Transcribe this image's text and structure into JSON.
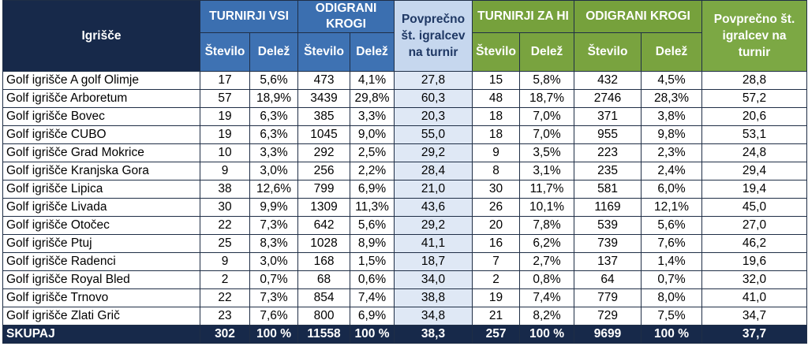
{
  "headers": {
    "igrisce": "Igrišče",
    "turnirji_vsi": "TURNIRJI VSI",
    "odigrani_krogi_1": "ODIGRANI KROGI",
    "povprecno_1": "Povprečno št. igralcev na turnir",
    "turnirji_za_hi": "TURNIRJI ZA HI",
    "odigrani_krogi_2": "ODIGRANI KROGI",
    "povprecno_2": "Povprečno št. igralcev na turnir",
    "stevilo": "Število",
    "delez": "Delež"
  },
  "rows": [
    {
      "name": "Golf igrišče A golf Olimje",
      "t_st": "17",
      "t_de": "5,6%",
      "k_st": "473",
      "k_de": "4,1%",
      "avg1": "27,8",
      "h_st": "15",
      "h_de": "5,8%",
      "hk_st": "432",
      "hk_de": "4,5%",
      "avg2": "28,8"
    },
    {
      "name": "Golf igrišče Arboretum",
      "t_st": "57",
      "t_de": "18,9%",
      "k_st": "3439",
      "k_de": "29,8%",
      "avg1": "60,3",
      "h_st": "48",
      "h_de": "18,7%",
      "hk_st": "2746",
      "hk_de": "28,3%",
      "avg2": "57,2"
    },
    {
      "name": "Golf igrišče Bovec",
      "t_st": "19",
      "t_de": "6,3%",
      "k_st": "385",
      "k_de": "3,3%",
      "avg1": "20,3",
      "h_st": "18",
      "h_de": "7,0%",
      "hk_st": "371",
      "hk_de": "3,8%",
      "avg2": "20,6"
    },
    {
      "name": "Golf igrišče CUBO",
      "t_st": "19",
      "t_de": "6,3%",
      "k_st": "1045",
      "k_de": "9,0%",
      "avg1": "55,0",
      "h_st": "18",
      "h_de": "7,0%",
      "hk_st": "955",
      "hk_de": "9,8%",
      "avg2": "53,1"
    },
    {
      "name": "Golf igrišče Grad Mokrice",
      "t_st": "10",
      "t_de": "3,3%",
      "k_st": "292",
      "k_de": "2,5%",
      "avg1": "29,2",
      "h_st": "9",
      "h_de": "3,5%",
      "hk_st": "223",
      "hk_de": "2,3%",
      "avg2": "24,8"
    },
    {
      "name": "Golf igrišče Kranjska Gora",
      "t_st": "9",
      "t_de": "3,0%",
      "k_st": "256",
      "k_de": "2,2%",
      "avg1": "28,4",
      "h_st": "8",
      "h_de": "3,1%",
      "hk_st": "235",
      "hk_de": "2,4%",
      "avg2": "29,4"
    },
    {
      "name": "Golf igrišče Lipica",
      "t_st": "38",
      "t_de": "12,6%",
      "k_st": "799",
      "k_de": "6,9%",
      "avg1": "21,0",
      "h_st": "30",
      "h_de": "11,7%",
      "hk_st": "581",
      "hk_de": "6,0%",
      "avg2": "19,4"
    },
    {
      "name": "Golf igrišče Livada",
      "t_st": "30",
      "t_de": "9,9%",
      "k_st": "1309",
      "k_de": "11,3%",
      "avg1": "43,6",
      "h_st": "26",
      "h_de": "10,1%",
      "hk_st": "1169",
      "hk_de": "12,1%",
      "avg2": "45,0"
    },
    {
      "name": "Golf igrišče Otočec",
      "t_st": "22",
      "t_de": "7,3%",
      "k_st": "642",
      "k_de": "5,6%",
      "avg1": "29,2",
      "h_st": "20",
      "h_de": "7,8%",
      "hk_st": "539",
      "hk_de": "5,6%",
      "avg2": "27,0"
    },
    {
      "name": "Golf igrišče Ptuj",
      "t_st": "25",
      "t_de": "8,3%",
      "k_st": "1028",
      "k_de": "8,9%",
      "avg1": "41,1",
      "h_st": "16",
      "h_de": "6,2%",
      "hk_st": "739",
      "hk_de": "7,6%",
      "avg2": "46,2"
    },
    {
      "name": "Golf igrišče Radenci",
      "t_st": "9",
      "t_de": "3,0%",
      "k_st": "168",
      "k_de": "1,5%",
      "avg1": "18,7",
      "h_st": "7",
      "h_de": "2,7%",
      "hk_st": "137",
      "hk_de": "1,4%",
      "avg2": "19,6"
    },
    {
      "name": "Golf igrišče Royal Bled",
      "t_st": "2",
      "t_de": "0,7%",
      "k_st": "68",
      "k_de": "0,6%",
      "avg1": "34,0",
      "h_st": "2",
      "h_de": "0,8%",
      "hk_st": "64",
      "hk_de": "0,7%",
      "avg2": "32,0"
    },
    {
      "name": "Golf igrišče Trnovo",
      "t_st": "22",
      "t_de": "7,3%",
      "k_st": "854",
      "k_de": "7,4%",
      "avg1": "38,8",
      "h_st": "19",
      "h_de": "7,4%",
      "hk_st": "779",
      "hk_de": "8,0%",
      "avg2": "41,0"
    },
    {
      "name": "Golf igrišče Zlati Grič",
      "t_st": "23",
      "t_de": "7,6%",
      "k_st": "800",
      "k_de": "6,9%",
      "avg1": "34,8",
      "h_st": "21",
      "h_de": "8,2%",
      "hk_st": "729",
      "hk_de": "7,5%",
      "avg2": "34,7"
    }
  ],
  "total": {
    "name": "SKUPAJ",
    "t_st": "302",
    "t_de": "100 %",
    "k_st": "11558",
    "k_de": "100 %",
    "avg1": "38,3",
    "h_st": "257",
    "h_de": "100 %",
    "hk_st": "9699",
    "hk_de": "100 %",
    "avg2": "37,7"
  },
  "colors": {
    "navy": "#17294a",
    "blue": "#3b6fb0",
    "green": "#76a13c",
    "light_blue": "#c6d7ee"
  }
}
